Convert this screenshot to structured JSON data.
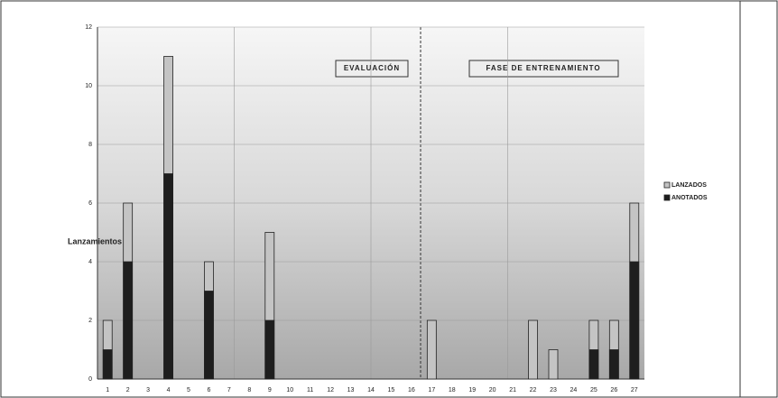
{
  "chart_data": {
    "type": "bar",
    "categories": [
      "1",
      "2",
      "3",
      "4",
      "5",
      "6",
      "7",
      "8",
      "9",
      "10",
      "11",
      "12",
      "13",
      "14",
      "15",
      "16",
      "17",
      "18",
      "19",
      "20",
      "21",
      "22",
      "23",
      "24",
      "25",
      "26",
      "27"
    ],
    "series": [
      {
        "name": "LANZADOS",
        "color": "#c4c4c4",
        "values": [
          2,
          6,
          0,
          11,
          0,
          4,
          0,
          0,
          5,
          0,
          0,
          0,
          0,
          0,
          0,
          0,
          2,
          0,
          0,
          0,
          0,
          2,
          1,
          0,
          2,
          2,
          6
        ]
      },
      {
        "name": "ANOTADOS",
        "color": "#1e1e1e",
        "values": [
          1,
          4,
          0,
          7,
          0,
          3,
          0,
          0,
          2,
          0,
          0,
          0,
          0,
          0,
          0,
          0,
          0,
          0,
          0,
          0,
          0,
          0,
          0,
          0,
          1,
          1,
          4
        ]
      }
    ],
    "ylabel": "Lanzamientos",
    "annotations": [
      "EVALUACIÓN",
      "FASE DE ENTRENAMIENTO"
    ],
    "ylim": [
      0,
      12
    ],
    "yticks": [
      0,
      2,
      4,
      6,
      8,
      10,
      12
    ],
    "grid": true
  }
}
